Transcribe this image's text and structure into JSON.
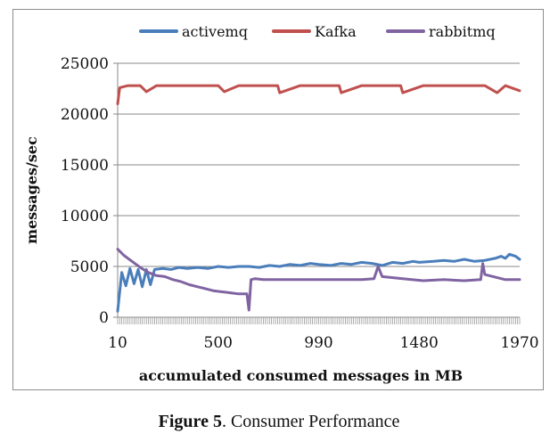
{
  "caption": {
    "label": "Figure 5",
    "text": ". Consumer Performance"
  },
  "chart_data": {
    "type": "line",
    "xlabel": "accumulated consumed messages in MB",
    "ylabel": "messages/sec",
    "xlim": [
      10,
      1970
    ],
    "ylim": [
      0,
      25000
    ],
    "yticks": [
      0,
      5000,
      10000,
      15000,
      20000,
      25000
    ],
    "xticks": [
      10,
      500,
      990,
      1480,
      1970
    ],
    "grid": "horizontal",
    "legend": "top",
    "series": [
      {
        "name": "activemq",
        "color": "#4a7ebb",
        "x": [
          10,
          30,
          50,
          70,
          90,
          110,
          130,
          150,
          170,
          190,
          230,
          270,
          310,
          350,
          400,
          450,
          500,
          550,
          600,
          650,
          700,
          750,
          800,
          850,
          900,
          950,
          990,
          1050,
          1100,
          1150,
          1200,
          1250,
          1300,
          1350,
          1400,
          1450,
          1480,
          1550,
          1600,
          1650,
          1700,
          1750,
          1800,
          1850,
          1880,
          1900,
          1920,
          1950,
          1970
        ],
        "y": [
          600,
          4400,
          3100,
          4800,
          3300,
          4700,
          3000,
          4700,
          3200,
          4700,
          4800,
          4700,
          4900,
          4800,
          4900,
          4800,
          5000,
          4900,
          5000,
          5000,
          4900,
          5100,
          5000,
          5200,
          5100,
          5300,
          5200,
          5100,
          5300,
          5200,
          5400,
          5300,
          5100,
          5400,
          5300,
          5500,
          5400,
          5500,
          5600,
          5500,
          5700,
          5500,
          5600,
          5800,
          6000,
          5800,
          6200,
          6000,
          5700
        ]
      },
      {
        "name": "Kafka",
        "color": "#c0504d",
        "x": [
          10,
          20,
          60,
          120,
          150,
          200,
          300,
          400,
          500,
          530,
          600,
          700,
          790,
          800,
          900,
          1000,
          1090,
          1100,
          1200,
          1300,
          1390,
          1400,
          1500,
          1600,
          1700,
          1800,
          1860,
          1900,
          1970
        ],
        "y": [
          21000,
          22600,
          22800,
          22800,
          22200,
          22800,
          22800,
          22800,
          22800,
          22200,
          22800,
          22800,
          22800,
          22100,
          22800,
          22800,
          22800,
          22100,
          22800,
          22800,
          22800,
          22100,
          22800,
          22800,
          22800,
          22800,
          22100,
          22800,
          22300
        ]
      },
      {
        "name": "rabbitmq",
        "color": "#8064a2",
        "x": [
          10,
          40,
          80,
          120,
          160,
          200,
          240,
          280,
          320,
          360,
          400,
          440,
          480,
          520,
          560,
          600,
          640,
          650,
          660,
          680,
          720,
          800,
          900,
          1000,
          1100,
          1200,
          1260,
          1280,
          1300,
          1400,
          1500,
          1600,
          1700,
          1780,
          1790,
          1800,
          1900,
          1970
        ],
        "y": [
          6700,
          6100,
          5500,
          4900,
          4400,
          4100,
          4000,
          3700,
          3500,
          3200,
          3000,
          2800,
          2600,
          2500,
          2400,
          2300,
          2300,
          700,
          3700,
          3800,
          3700,
          3700,
          3700,
          3700,
          3700,
          3700,
          3800,
          5000,
          4000,
          3800,
          3600,
          3700,
          3600,
          3700,
          5300,
          4200,
          3700,
          3700
        ]
      }
    ]
  }
}
